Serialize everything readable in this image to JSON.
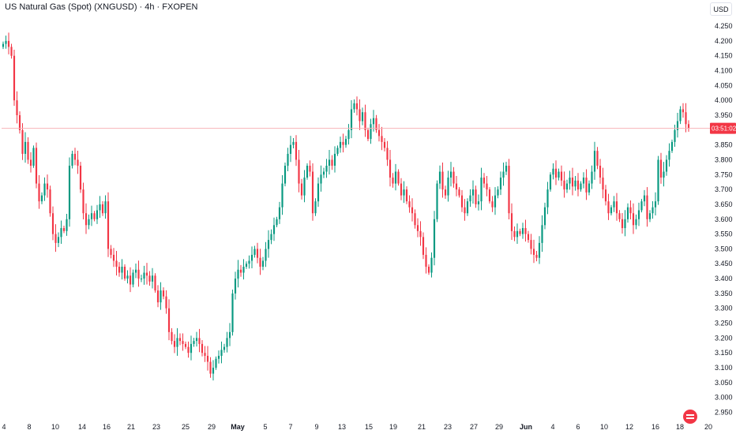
{
  "header": {
    "title": "US Natural Gas (Spot) (XNGUSD) · 4h · FXOPEN",
    "currency": "USD"
  },
  "colors": {
    "up": "#089981",
    "down": "#f23645",
    "last_price_line": "#f7b2b8",
    "last_price_tag": "#f23645",
    "axis_text": "#131722"
  },
  "icons": {
    "logo": "tradingview-watermark-icon"
  },
  "chart_data": {
    "type": "candlestick",
    "symbol": "XNGUSD",
    "interval": "4h",
    "y_range": [
      2.93,
      4.29
    ],
    "y_ticks": [
      "4.250",
      "4.200",
      "4.150",
      "4.100",
      "4.050",
      "4.000",
      "3.950",
      "3.900",
      "3.850",
      "3.800",
      "3.750",
      "3.700",
      "3.650",
      "3.600",
      "3.550",
      "3.500",
      "3.450",
      "3.400",
      "3.350",
      "3.300",
      "3.250",
      "3.200",
      "3.150",
      "3.100",
      "3.050",
      "3.000",
      "2.950"
    ],
    "x_labels": [
      "4",
      "8",
      "10",
      "14",
      "16",
      "21",
      "23",
      "25",
      "29",
      "May",
      "5",
      "7",
      "9",
      "13",
      "15",
      "19",
      "21",
      "23",
      "27",
      "29",
      "Jun",
      "4",
      "6",
      "10",
      "12",
      "16",
      "18",
      "20"
    ],
    "last_price": 3.906,
    "last_price_label": "3.906",
    "countdown_label": "03:51:02",
    "close_series": [
      4.19,
      4.2,
      4.18,
      4.15,
      4.0,
      3.95,
      3.9,
      3.82,
      3.86,
      3.8,
      3.78,
      3.84,
      3.72,
      3.66,
      3.68,
      3.72,
      3.7,
      3.62,
      3.55,
      3.52,
      3.54,
      3.57,
      3.56,
      3.6,
      3.78,
      3.82,
      3.8,
      3.78,
      3.7,
      3.62,
      3.58,
      3.6,
      3.62,
      3.6,
      3.63,
      3.65,
      3.62,
      3.66,
      3.5,
      3.48,
      3.46,
      3.44,
      3.42,
      3.44,
      3.4,
      3.41,
      3.38,
      3.42,
      3.43,
      3.4,
      3.4,
      3.42,
      3.41,
      3.39,
      3.41,
      3.36,
      3.32,
      3.36,
      3.34,
      3.3,
      3.22,
      3.19,
      3.17,
      3.2,
      3.19,
      3.18,
      3.17,
      3.15,
      3.18,
      3.19,
      3.2,
      3.18,
      3.15,
      3.14,
      3.12,
      3.08,
      3.1,
      3.13,
      3.14,
      3.16,
      3.17,
      3.2,
      3.22,
      3.35,
      3.4,
      3.43,
      3.42,
      3.44,
      3.45,
      3.46,
      3.48,
      3.5,
      3.47,
      3.44,
      3.46,
      3.5,
      3.53,
      3.55,
      3.58,
      3.6,
      3.64,
      3.72,
      3.78,
      3.82,
      3.85,
      3.86,
      3.8,
      3.72,
      3.68,
      3.74,
      3.78,
      3.76,
      3.62,
      3.66,
      3.72,
      3.75,
      3.76,
      3.78,
      3.8,
      3.78,
      3.82,
      3.84,
      3.86,
      3.85,
      3.87,
      3.9,
      3.97,
      3.99,
      3.97,
      3.93,
      3.96,
      3.9,
      3.87,
      3.92,
      3.94,
      3.9,
      3.88,
      3.86,
      3.84,
      3.8,
      3.74,
      3.72,
      3.76,
      3.72,
      3.68,
      3.7,
      3.66,
      3.64,
      3.62,
      3.58,
      3.56,
      3.54,
      3.48,
      3.44,
      3.42,
      3.47,
      3.6,
      3.72,
      3.76,
      3.7,
      3.68,
      3.74,
      3.76,
      3.72,
      3.7,
      3.68,
      3.64,
      3.62,
      3.66,
      3.68,
      3.7,
      3.65,
      3.66,
      3.74,
      3.72,
      3.7,
      3.66,
      3.64,
      3.68,
      3.7,
      3.74,
      3.76,
      3.78,
      3.62,
      3.56,
      3.54,
      3.56,
      3.55,
      3.57,
      3.55,
      3.53,
      3.5,
      3.48,
      3.47,
      3.52,
      3.58,
      3.64,
      3.7,
      3.75,
      3.77,
      3.74,
      3.76,
      3.73,
      3.7,
      3.72,
      3.74,
      3.71,
      3.73,
      3.7,
      3.72,
      3.74,
      3.69,
      3.72,
      3.76,
      3.83,
      3.78,
      3.74,
      3.7,
      3.66,
      3.62,
      3.64,
      3.66,
      3.62,
      3.6,
      3.57,
      3.6,
      3.64,
      3.62,
      3.58,
      3.6,
      3.63,
      3.66,
      3.68,
      3.6,
      3.62,
      3.64,
      3.66,
      3.8,
      3.74,
      3.76,
      3.8,
      3.83,
      3.86,
      3.9,
      3.93,
      3.97,
      3.96,
      3.92,
      3.906
    ]
  }
}
